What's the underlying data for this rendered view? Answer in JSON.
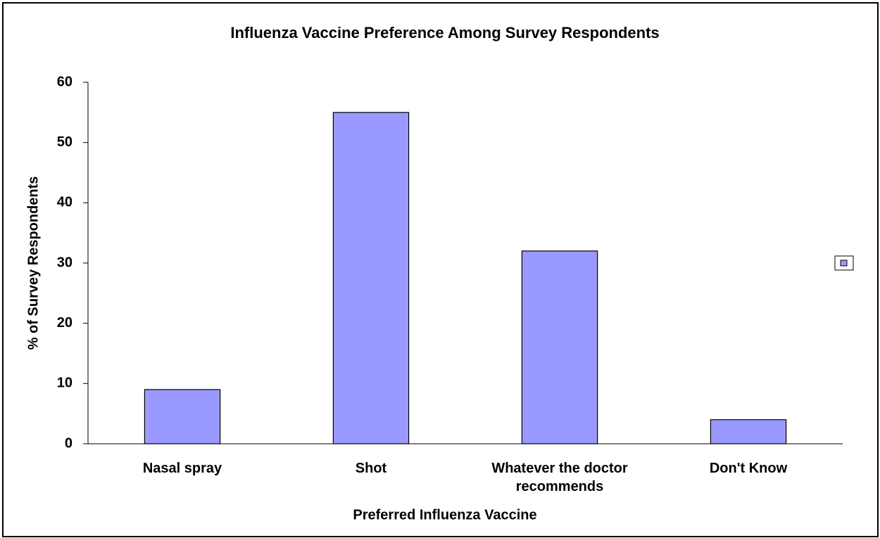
{
  "chart_data": {
    "type": "bar",
    "title": "Influenza Vaccine Preference Among Survey Respondents",
    "x_label": "Preferred Influenza Vaccine",
    "y_label": "% of Survey Respondents",
    "categories": [
      "Nasal spray",
      "Shot",
      "Whatever the doctor recommends",
      "Don't Know"
    ],
    "values": [
      9,
      55,
      32,
      4
    ],
    "color": "#9999ff",
    "ylim": [
      0,
      60
    ],
    "yticks": [
      0,
      10,
      20,
      30,
      40,
      50,
      60
    ],
    "grid": false
  }
}
